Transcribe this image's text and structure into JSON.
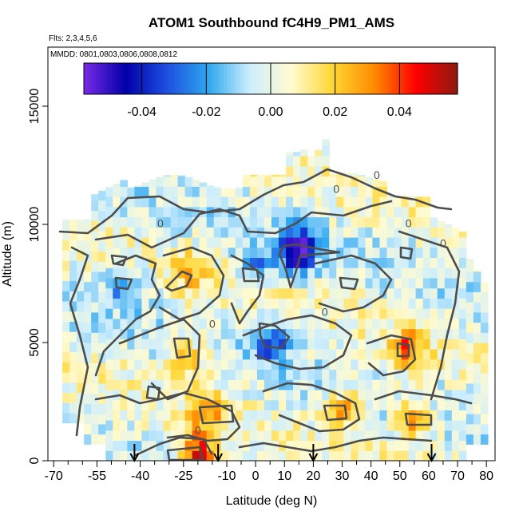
{
  "chart_data": {
    "type": "heatmap",
    "title": "ATOM1 Southbound fC4H9_PM1_AMS",
    "subtitle_flights": "Flts: 2,3,4,5,6",
    "subtitle_dates": "MMDD: 0801,0803,0806,0808,0812",
    "xlabel": "Latitude (deg N)",
    "ylabel": "Altitude (m)",
    "xlim": [
      -72,
      83
    ],
    "ylim": [
      0,
      17500
    ],
    "x_ticks": [
      -70,
      -55,
      -40,
      -25,
      -10,
      0,
      10,
      20,
      30,
      40,
      50,
      60,
      70,
      80
    ],
    "x_tick_labels": [
      "-70",
      "-55",
      "-40",
      "-25",
      "-10",
      "0",
      "10",
      "20",
      "30",
      "40",
      "50",
      "60",
      "70",
      "80"
    ],
    "x_minor_ticks": [
      -65,
      -60,
      -50,
      -45,
      -35,
      -30,
      -20,
      -15,
      -5,
      5,
      15,
      25,
      35,
      45,
      55,
      65,
      75
    ],
    "y_ticks": [
      0,
      5000,
      10000,
      15000
    ],
    "y_tick_labels": [
      "0",
      "5000",
      "10000",
      "15000"
    ],
    "colorbar": {
      "range": [
        -0.058,
        0.058
      ],
      "ticks": [
        -0.04,
        -0.02,
        0.0,
        0.02,
        0.04
      ],
      "tick_labels": [
        "-0.04",
        "-0.02",
        "0.00",
        "0.02",
        "0.04"
      ],
      "colors": [
        "#7a2be6",
        "#0000a8",
        "#1e4fe0",
        "#2fa7f0",
        "#cdeefd",
        "#fffbd0",
        "#ffd633",
        "#ff8a00",
        "#ff0000",
        "#8c1a0f"
      ]
    },
    "arrow_latitudes": [
      -42,
      -13,
      20,
      61
    ],
    "contour_labels": [
      {
        "lat": -33,
        "alt": 10050,
        "label": "0"
      },
      {
        "lat": 28,
        "alt": 11500,
        "label": "0"
      },
      {
        "lat": 42,
        "alt": 12100,
        "label": "0"
      },
      {
        "lat": 53,
        "alt": 10050,
        "label": "0"
      },
      {
        "lat": 65,
        "alt": 9200,
        "label": "0"
      },
      {
        "lat": -15,
        "alt": 5800,
        "label": "0"
      },
      {
        "lat": 24,
        "alt": 6300,
        "label": "0"
      },
      {
        "lat": -20,
        "alt": 1300,
        "label": "0"
      }
    ],
    "features": [
      {
        "name": "strong-negative-core",
        "lat": 15,
        "alt": 8900,
        "value": -0.055
      },
      {
        "name": "negative-cell-mid",
        "lat": 6,
        "alt": 5000,
        "value": -0.035
      },
      {
        "name": "negative-cell-upper-left",
        "lat": -45,
        "alt": 7400,
        "value": -0.025
      },
      {
        "name": "negative-cell-9km",
        "lat": 0,
        "alt": 8300,
        "value": -0.025
      },
      {
        "name": "positive-surface-max",
        "lat": -20,
        "alt": 300,
        "value": 0.048
      },
      {
        "name": "positive-cell-mid-left",
        "lat": -23,
        "alt": 4300,
        "value": 0.025
      },
      {
        "name": "positive-cell-lower",
        "lat": -17,
        "alt": 2200,
        "value": 0.025
      },
      {
        "name": "positive-cell-lower-right",
        "lat": 31,
        "alt": 2200,
        "value": 0.028
      },
      {
        "name": "positive-cell-right",
        "lat": 53,
        "alt": 4700,
        "value": 0.035
      },
      {
        "name": "positive-cell-upper-right",
        "lat": 55,
        "alt": 1800,
        "value": 0.03
      },
      {
        "name": "positive-cell-8km",
        "lat": -22,
        "alt": 8000,
        "value": 0.02
      }
    ]
  }
}
